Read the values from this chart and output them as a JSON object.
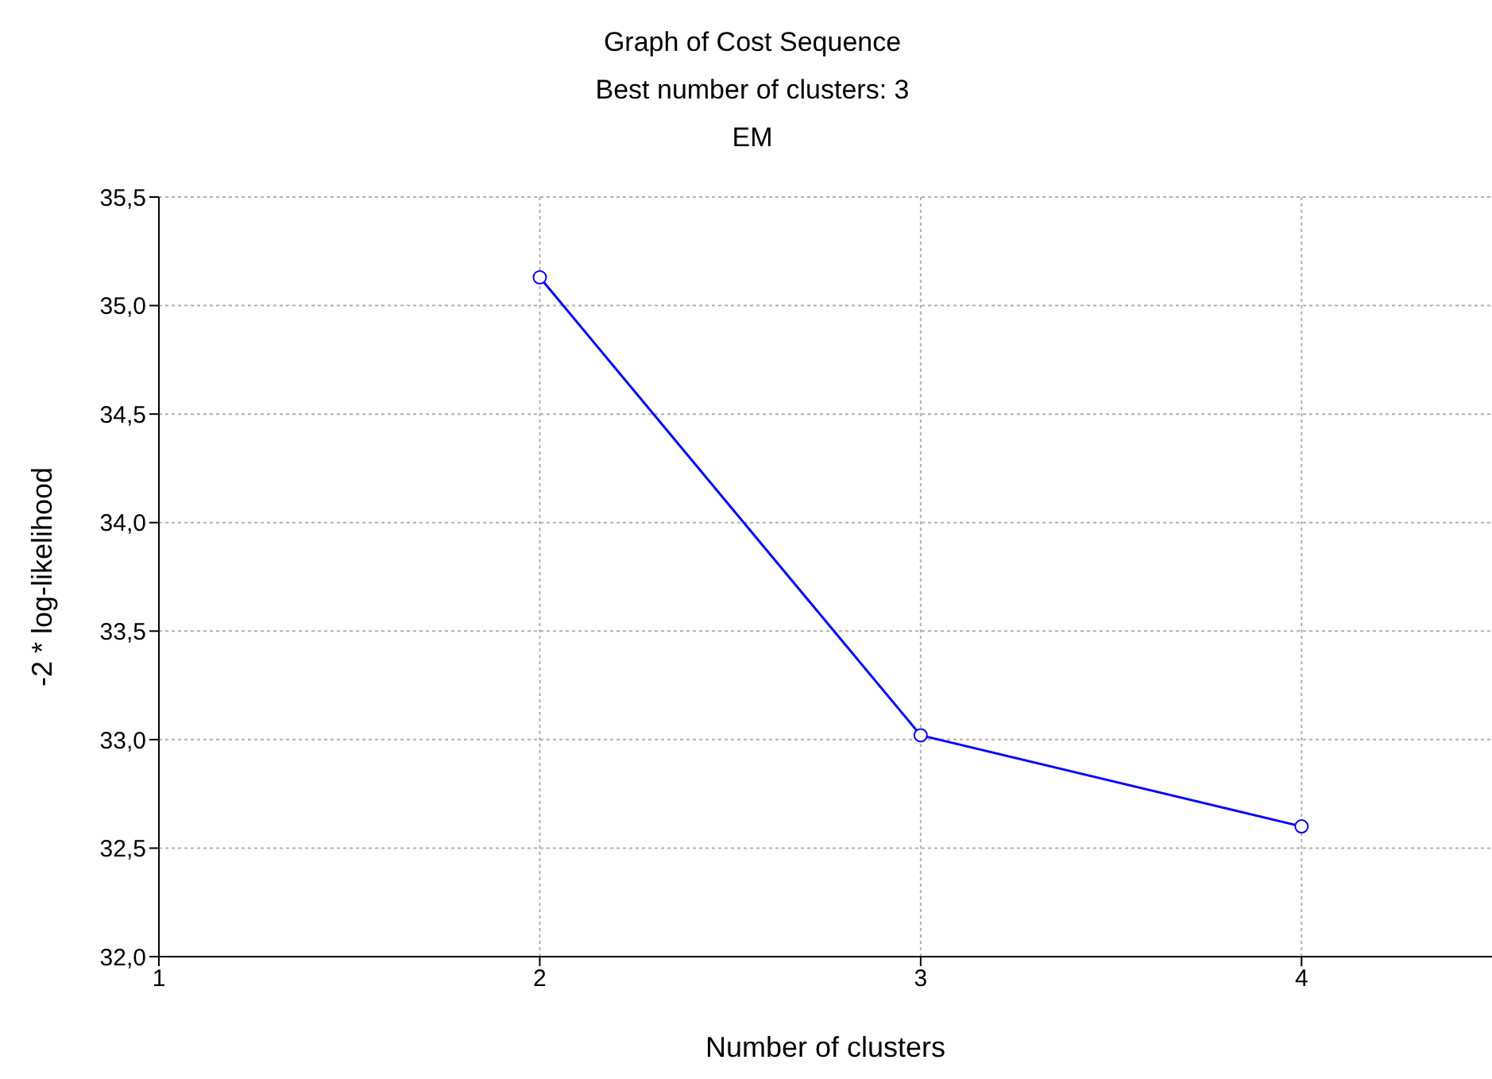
{
  "chart_data": {
    "type": "line",
    "title": "Graph of Cost Sequence",
    "subtitle": "Best number of clusters: 3",
    "annotations": [
      "EM"
    ],
    "xlabel": "Number of clusters",
    "ylabel": "-2 * log-likelihood",
    "x": [
      2,
      3,
      4
    ],
    "series": [
      {
        "color": "#0000ff",
        "values": [
          35.13,
          33.02,
          32.6
        ]
      }
    ],
    "xlim": [
      1,
      4.5
    ],
    "xticks": [
      1,
      2,
      3,
      4
    ],
    "ylim": [
      32.0,
      35.5
    ],
    "yticks": [
      {
        "value": 32.0,
        "label": "32,0"
      },
      {
        "value": 32.5,
        "label": "32,5"
      },
      {
        "value": 33.0,
        "label": "33,0"
      },
      {
        "value": 33.5,
        "label": "33,5"
      },
      {
        "value": 34.0,
        "label": "34,0"
      },
      {
        "value": 34.5,
        "label": "34,5"
      },
      {
        "value": 35.0,
        "label": "35,0"
      },
      {
        "value": 35.5,
        "label": "35,5"
      }
    ],
    "grid": true,
    "marker": "circle",
    "line_style": "solid"
  }
}
